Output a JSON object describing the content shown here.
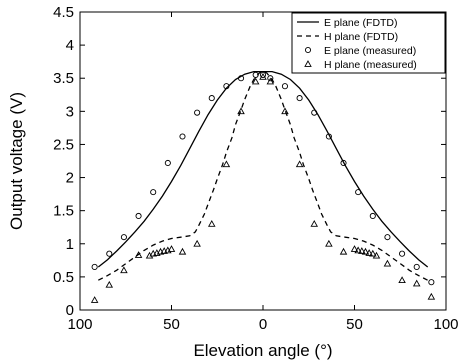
{
  "chart_data": {
    "type": "line",
    "xlabel": "Elevation angle (°)",
    "ylabel": "Output voltage (V)",
    "xlim": [
      -100,
      100
    ],
    "ylim": [
      0,
      4.5
    ],
    "x_tick_values": [
      -100,
      -50,
      0,
      50,
      100
    ],
    "x_tick_labels": [
      "100",
      "50",
      "0",
      "50",
      "100"
    ],
    "y_tick_values": [
      0,
      0.5,
      1,
      1.5,
      2,
      2.5,
      3,
      3.5,
      4,
      4.5
    ],
    "y_tick_labels": [
      "0",
      "0.5",
      "1",
      "1.5",
      "2",
      "2.5",
      "3",
      "3.5",
      "4",
      "4.5"
    ],
    "grid": false,
    "legend_position": "top-right",
    "series": [
      {
        "name": "E plane (FDTD)",
        "style": "solid-line",
        "x": [
          -90,
          -85,
          -80,
          -75,
          -70,
          -65,
          -60,
          -55,
          -50,
          -45,
          -40,
          -35,
          -30,
          -25,
          -20,
          -15,
          -10,
          -5,
          0,
          5,
          10,
          15,
          20,
          25,
          30,
          35,
          40,
          45,
          50,
          55,
          60,
          65,
          70,
          75,
          80,
          85,
          90
        ],
        "y": [
          0.65,
          0.76,
          0.89,
          1.03,
          1.18,
          1.34,
          1.52,
          1.72,
          1.94,
          2.18,
          2.44,
          2.7,
          2.95,
          3.17,
          3.35,
          3.48,
          3.56,
          3.6,
          3.6,
          3.6,
          3.56,
          3.48,
          3.35,
          3.17,
          2.95,
          2.7,
          2.44,
          2.18,
          1.94,
          1.72,
          1.52,
          1.34,
          1.18,
          1.03,
          0.89,
          0.76,
          0.65
        ]
      },
      {
        "name": "H plane (FDTD)",
        "style": "dashed-line",
        "x": [
          -90,
          -85,
          -80,
          -75,
          -70,
          -65,
          -60,
          -55,
          -50,
          -45,
          -40,
          -37,
          -35,
          -32,
          -30,
          -27,
          -25,
          -22,
          -20,
          -17,
          -15,
          -12,
          -10,
          -7,
          -5,
          -2,
          0,
          2,
          5,
          7,
          10,
          12,
          15,
          17,
          20,
          22,
          25,
          27,
          30,
          32,
          35,
          37,
          40,
          45,
          50,
          55,
          60,
          65,
          70,
          75,
          80,
          85,
          90
        ],
        "y": [
          0.45,
          0.52,
          0.6,
          0.7,
          0.8,
          0.9,
          0.98,
          1.04,
          1.08,
          1.1,
          1.12,
          1.18,
          1.28,
          1.45,
          1.6,
          1.82,
          1.98,
          2.2,
          2.38,
          2.6,
          2.8,
          3.02,
          3.18,
          3.38,
          3.48,
          3.58,
          3.6,
          3.58,
          3.48,
          3.38,
          3.18,
          3.02,
          2.8,
          2.6,
          2.38,
          2.2,
          1.98,
          1.82,
          1.6,
          1.45,
          1.28,
          1.18,
          1.12,
          1.1,
          1.08,
          1.04,
          0.98,
          0.9,
          0.8,
          0.7,
          0.6,
          0.52,
          0.45
        ]
      },
      {
        "name": "E plane (measured)",
        "style": "circle-markers",
        "x": [
          -92,
          -84,
          -76,
          -68,
          -60,
          -52,
          -44,
          -36,
          -28,
          -20,
          -12,
          -4,
          0,
          4,
          12,
          20,
          28,
          36,
          44,
          52,
          60,
          68,
          76,
          84,
          92
        ],
        "y": [
          0.65,
          0.85,
          1.1,
          1.42,
          1.78,
          2.22,
          2.62,
          2.98,
          3.2,
          3.38,
          3.5,
          3.55,
          3.55,
          3.5,
          3.38,
          3.2,
          2.98,
          2.62,
          2.22,
          1.78,
          1.42,
          1.1,
          0.85,
          0.65,
          0.42
        ]
      },
      {
        "name": "H plane (measured)",
        "style": "triangle-markers",
        "x": [
          -92,
          -84,
          -76,
          -68,
          -62,
          -60,
          -58,
          -56,
          -54,
          -52,
          -50,
          -44,
          -36,
          -28,
          -20,
          -12,
          -4,
          0,
          4,
          12,
          20,
          28,
          36,
          44,
          50,
          52,
          54,
          56,
          58,
          60,
          62,
          68,
          76,
          84,
          92
        ],
        "y": [
          0.15,
          0.38,
          0.6,
          0.83,
          0.82,
          0.85,
          0.86,
          0.88,
          0.89,
          0.9,
          0.92,
          0.88,
          1.0,
          1.3,
          2.2,
          3.0,
          3.45,
          3.52,
          3.45,
          3.0,
          2.2,
          1.3,
          1.0,
          0.88,
          0.92,
          0.9,
          0.89,
          0.88,
          0.86,
          0.85,
          0.82,
          0.7,
          0.45,
          0.4,
          0.2
        ]
      }
    ]
  }
}
